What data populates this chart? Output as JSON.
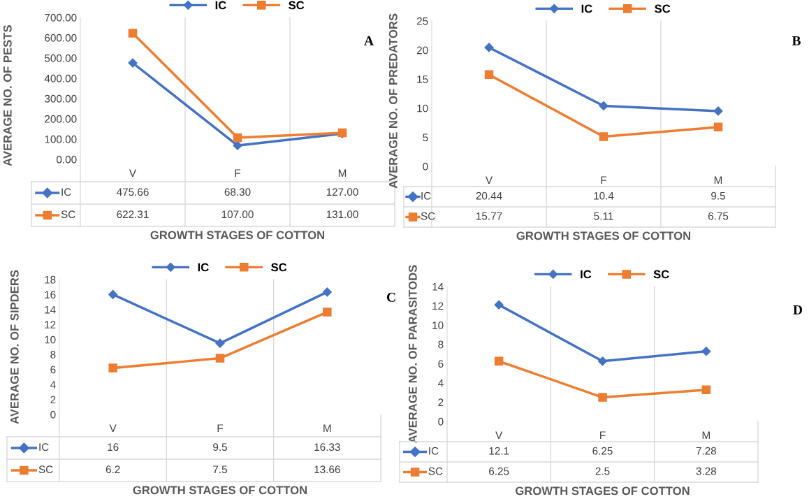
{
  "chart_data": [
    {
      "type": "line",
      "ylabel": "AVERAGE NO. OF PESTS",
      "xlabel": "GROWTH STAGES OF COTTON",
      "categories": [
        "V",
        "F",
        "M"
      ],
      "ylim": [
        0,
        700
      ],
      "yticks": [
        {
          "value": 0,
          "label": "0.00"
        },
        {
          "value": 100,
          "label": "100.00"
        },
        {
          "value": 200,
          "label": "200.00"
        },
        {
          "value": 300,
          "label": "300.00"
        },
        {
          "value": 400,
          "label": "400.00"
        },
        {
          "value": 500,
          "label": "500.00"
        },
        {
          "value": 600,
          "label": "600.00"
        },
        {
          "value": 700,
          "label": "700.00"
        }
      ],
      "legend": "top",
      "annotations": [
        "A"
      ],
      "series": [
        {
          "name": "IC",
          "color": "#4472c4",
          "marker": "diamond",
          "values": [
            475.66,
            68.3,
            127.0
          ],
          "value_labels": [
            "475.66",
            "68.30",
            "127.00"
          ]
        },
        {
          "name": "SC",
          "color": "#ed7d31",
          "marker": "square",
          "values": [
            622.31,
            107.0,
            131.0
          ],
          "value_labels": [
            "622.31",
            "107.00",
            "131.00"
          ]
        }
      ]
    },
    {
      "type": "line",
      "ylabel": "AVERAGE NO. OF PREDATORS",
      "xlabel": "GROWTH STAGES OF COTTON",
      "categories": [
        "V",
        "F",
        "M"
      ],
      "ylim": [
        0,
        25
      ],
      "yticks": [
        0,
        5,
        10,
        15,
        20,
        25
      ],
      "legend": "top",
      "annotations": [
        "B"
      ],
      "series": [
        {
          "name": "IC",
          "color": "#4472c4",
          "marker": "diamond",
          "values": [
            20.44,
            10.4,
            9.5
          ],
          "value_labels": [
            "20.44",
            "10.4",
            "9.5"
          ]
        },
        {
          "name": "SC",
          "color": "#ed7d31",
          "marker": "square",
          "values": [
            15.77,
            5.11,
            6.75
          ],
          "value_labels": [
            "15.77",
            "5.11",
            "6.75"
          ]
        }
      ]
    },
    {
      "type": "line",
      "ylabel": "AVERAGE NO. OF SIPDERS",
      "xlabel": "GROWTH STAGES OF COTTON",
      "categories": [
        "V",
        "F",
        "M"
      ],
      "ylim": [
        0,
        18
      ],
      "yticks": [
        0,
        2,
        4,
        6,
        8,
        10,
        12,
        14,
        16,
        18
      ],
      "legend": "top",
      "annotations": [
        "C"
      ],
      "series": [
        {
          "name": "IC",
          "color": "#4472c4",
          "marker": "diamond",
          "values": [
            16,
            9.5,
            16.33
          ],
          "value_labels": [
            "16",
            "9.5",
            "16.33"
          ]
        },
        {
          "name": "SC",
          "color": "#ed7d31",
          "marker": "square",
          "values": [
            6.2,
            7.5,
            13.66
          ],
          "value_labels": [
            "6.2",
            "7.5",
            "13.66"
          ]
        }
      ]
    },
    {
      "type": "line",
      "ylabel": "AVERAGE NO. OF PARASITODS",
      "xlabel": "GROWTH STAGES OF COTTON",
      "categories": [
        "V",
        "F",
        "M"
      ],
      "ylim": [
        0,
        14
      ],
      "yticks": [
        0,
        2,
        4,
        6,
        8,
        10,
        12,
        14
      ],
      "legend": "top",
      "annotations": [
        "D"
      ],
      "series": [
        {
          "name": "IC",
          "color": "#4472c4",
          "marker": "diamond",
          "values": [
            12.1,
            6.25,
            7.28
          ],
          "value_labels": [
            "12.1",
            "6.25",
            "7.28"
          ]
        },
        {
          "name": "SC",
          "color": "#ed7d31",
          "marker": "square",
          "values": [
            6.25,
            2.5,
            3.28
          ],
          "value_labels": [
            "6.25",
            "2.5",
            "3.28"
          ]
        }
      ]
    }
  ]
}
